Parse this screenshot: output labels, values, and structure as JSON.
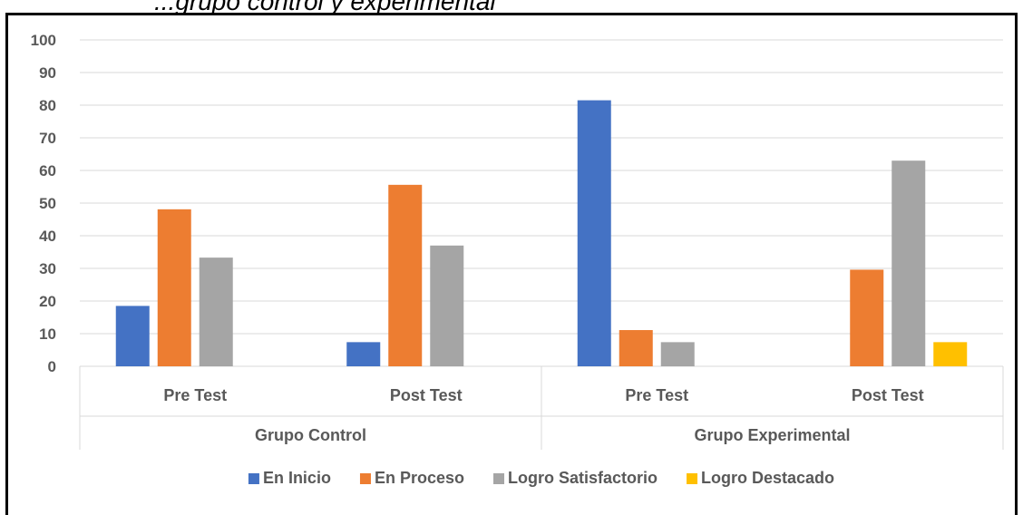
{
  "caption": "...grupo control y experimental",
  "chart_data": {
    "type": "bar",
    "groups": [
      "Grupo Control",
      "Grupo Experimental"
    ],
    "categories": [
      "Pre Test",
      "Post Test",
      "Pre Test",
      "Post Test"
    ],
    "category_group": [
      0,
      0,
      1,
      1
    ],
    "series": [
      {
        "name": "En Inicio",
        "color": "#4472C4",
        "values": [
          18.5,
          7.4,
          81.5,
          0
        ]
      },
      {
        "name": "En Proceso",
        "color": "#ED7D31",
        "values": [
          48.1,
          55.6,
          11.1,
          29.6
        ]
      },
      {
        "name": "Logro Satisfactorio",
        "color": "#A5A5A5",
        "values": [
          33.3,
          37.0,
          7.4,
          63.0
        ]
      },
      {
        "name": "Logro Destacado",
        "color": "#FFC000",
        "values": [
          0,
          0,
          0,
          7.4
        ]
      }
    ],
    "yticks": [
      0,
      10,
      20,
      30,
      40,
      50,
      60,
      70,
      80,
      90,
      100
    ],
    "ylim": [
      0,
      100
    ],
    "grid": true,
    "legend_position": "bottom"
  }
}
